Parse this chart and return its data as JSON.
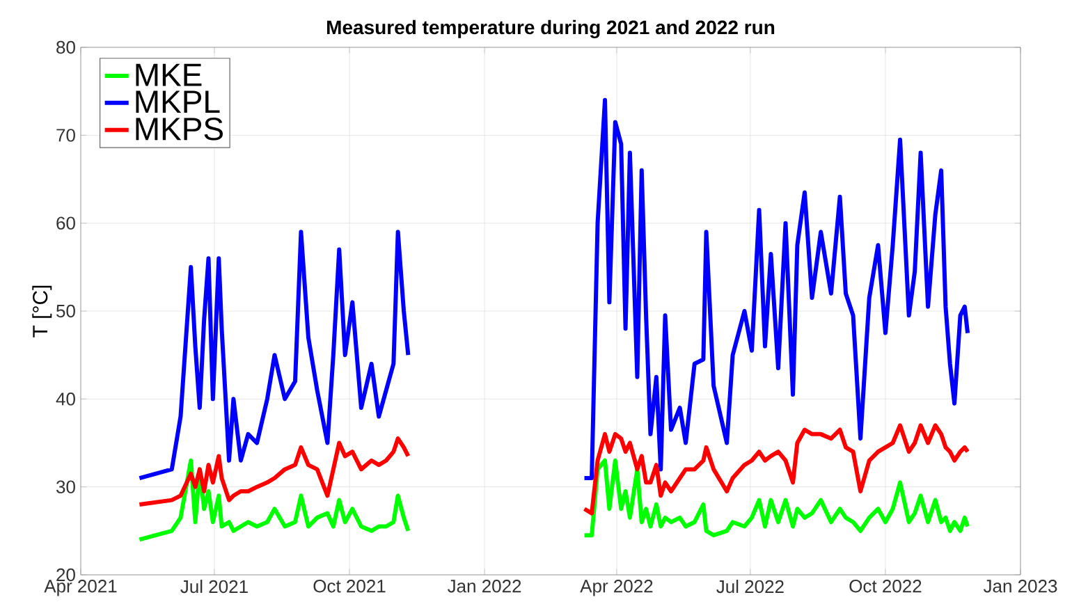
{
  "chart_data": {
    "type": "line",
    "title": "Measured temperature during 2021 and 2022 run",
    "ylabel": "T [°C]",
    "x": [
      "2021-05-11",
      "2021-06-02",
      "2021-06-08",
      "2021-06-15",
      "2021-06-18",
      "2021-06-21",
      "2021-06-24",
      "2021-06-27",
      "2021-06-30",
      "2021-07-04",
      "2021-07-06",
      "2021-07-11",
      "2021-07-14",
      "2021-07-19",
      "2021-07-24",
      "2021-07-30",
      "2021-08-06",
      "2021-08-11",
      "2021-08-18",
      "2021-08-25",
      "2021-08-29",
      "2021-09-03",
      "2021-09-09",
      "2021-09-16",
      "2021-09-20",
      "2021-09-24",
      "2021-09-28",
      "2021-10-03",
      "2021-10-09",
      "2021-10-16",
      "2021-10-21",
      "2021-10-26",
      "2021-10-31",
      "2021-11-03",
      "2021-11-07",
      "2021-11-10",
      "2022-01-15",
      "2022-03-10",
      "2022-03-15",
      "2022-03-19",
      "2022-03-24",
      "2022-03-27",
      "2022-03-31",
      "2022-04-04",
      "2022-04-07",
      "2022-04-10",
      "2022-04-15",
      "2022-04-18",
      "2022-04-21",
      "2022-04-24",
      "2022-04-28",
      "2022-05-01",
      "2022-05-04",
      "2022-05-08",
      "2022-05-14",
      "2022-05-18",
      "2022-05-24",
      "2022-05-30",
      "2022-06-01",
      "2022-06-06",
      "2022-06-15",
      "2022-06-19",
      "2022-06-27",
      "2022-07-02",
      "2022-07-07",
      "2022-07-11",
      "2022-07-15",
      "2022-07-20",
      "2022-07-25",
      "2022-07-30",
      "2022-08-02",
      "2022-08-07",
      "2022-08-12",
      "2022-08-18",
      "2022-08-25",
      "2022-08-31",
      "2022-09-04",
      "2022-09-09",
      "2022-09-14",
      "2022-09-20",
      "2022-09-26",
      "2022-10-01",
      "2022-10-06",
      "2022-10-11",
      "2022-10-17",
      "2022-10-21",
      "2022-10-25",
      "2022-10-30",
      "2022-11-04",
      "2022-11-08",
      "2022-11-11",
      "2022-11-14",
      "2022-11-17",
      "2022-11-21",
      "2022-11-24",
      "2022-11-26"
    ],
    "series": [
      {
        "name": "MKE",
        "color": "#00ff00",
        "values": [
          24,
          25,
          26.5,
          33,
          26,
          32,
          27.5,
          29.5,
          26,
          29,
          25.5,
          26,
          25,
          25.5,
          26,
          25.5,
          26,
          27.5,
          25.5,
          26,
          29,
          25.5,
          26.5,
          27,
          25.5,
          28.5,
          26,
          27.5,
          25.5,
          25,
          25.5,
          25.5,
          26,
          29,
          26.5,
          25,
          null,
          24.5,
          24.5,
          32,
          33,
          27.5,
          33,
          27.5,
          29.5,
          26.5,
          32,
          26,
          27.5,
          25.5,
          28,
          25.5,
          26.5,
          26,
          26.5,
          25.5,
          26,
          28,
          25,
          24.5,
          25,
          26,
          25.5,
          26.5,
          28.5,
          25.5,
          28.5,
          26,
          28.5,
          25.5,
          27.5,
          26.5,
          27,
          28.5,
          26,
          27.5,
          26.5,
          26,
          25,
          26.5,
          27.5,
          26,
          27.5,
          30.5,
          26,
          27,
          29,
          26,
          28.5,
          26,
          26.5,
          25,
          26,
          25,
          26.5,
          25.5
        ]
      },
      {
        "name": "MKPL",
        "color": "#0000ff",
        "values": [
          31,
          32,
          38,
          55,
          46,
          39,
          49,
          56,
          40,
          56,
          48,
          33,
          40,
          33,
          36,
          35,
          40,
          45,
          40,
          42,
          59,
          47,
          41,
          35,
          45,
          57,
          45,
          51,
          39,
          44,
          38,
          41,
          44,
          59,
          50,
          45,
          null,
          31,
          31,
          60,
          74,
          51,
          71.5,
          69,
          48,
          68,
          42.5,
          66,
          49.5,
          36,
          42.5,
          32,
          49.5,
          36.5,
          39,
          35,
          44,
          44.5,
          59,
          41.5,
          35,
          45,
          50,
          45.5,
          61.5,
          46,
          56.5,
          43.5,
          60,
          40.5,
          57.5,
          63.5,
          51.5,
          59,
          52,
          63,
          52,
          49.5,
          35.5,
          51.5,
          57.5,
          47.5,
          57.5,
          69.5,
          49.5,
          54.5,
          68,
          50.5,
          61,
          66,
          50.5,
          44,
          39.5,
          49.5,
          50.5,
          47.5
        ]
      },
      {
        "name": "MKPS",
        "color": "#ff0000",
        "values": [
          28,
          28.5,
          29,
          31.5,
          30,
          32,
          29.5,
          32.5,
          30.5,
          33.5,
          31,
          28.5,
          29,
          29.5,
          29.5,
          30,
          30.5,
          31,
          32,
          32.5,
          34.5,
          32.5,
          32,
          29,
          32,
          35,
          33.5,
          34,
          32,
          33,
          32.5,
          33,
          34,
          35.5,
          34.5,
          33.5,
          null,
          27.5,
          27,
          33,
          36,
          34,
          36,
          35.5,
          34,
          35,
          32,
          33.5,
          30.5,
          30.5,
          32.5,
          29,
          30.5,
          29.5,
          31,
          32,
          32,
          33,
          34.5,
          32,
          29.5,
          31,
          32.5,
          33,
          34,
          33,
          33.5,
          34,
          33,
          30.5,
          35,
          36.5,
          36,
          36,
          35.5,
          36.5,
          34.5,
          34,
          29.5,
          33,
          34,
          34.5,
          35,
          37,
          34,
          35,
          37,
          35,
          37,
          36,
          34.5,
          34,
          33,
          34,
          34.5,
          34
        ]
      }
    ],
    "xlim": [
      "2021-04-01",
      "2023-01-01"
    ],
    "xticks": [
      {
        "value": "2021-04-01",
        "label": "Apr 2021"
      },
      {
        "value": "2021-07-01",
        "label": "Jul 2021"
      },
      {
        "value": "2021-10-01",
        "label": "Oct 2021"
      },
      {
        "value": "2022-01-01",
        "label": "Jan 2022"
      },
      {
        "value": "2022-04-01",
        "label": "Apr 2022"
      },
      {
        "value": "2022-07-01",
        "label": "Jul 2022"
      },
      {
        "value": "2022-10-01",
        "label": "Oct 2022"
      },
      {
        "value": "2023-01-01",
        "label": "Jan 2023"
      }
    ],
    "ylim": [
      20,
      80
    ],
    "yticks": [
      20,
      30,
      40,
      50,
      60,
      70,
      80
    ],
    "grid": true,
    "legend": "top left"
  }
}
